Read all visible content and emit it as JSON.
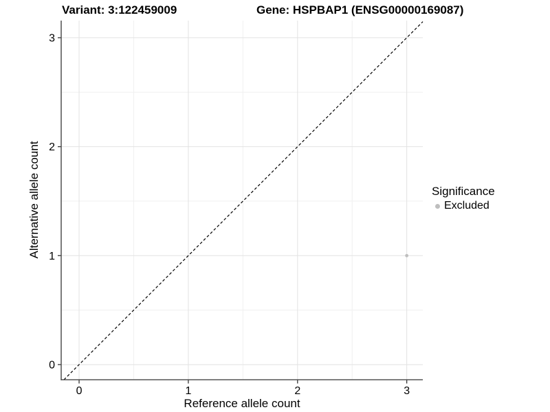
{
  "titles": {
    "variant": "Variant: 3:122459009",
    "gene": "Gene: HSPBAP1 (ENSG00000169087)"
  },
  "legend": {
    "title": "Significance",
    "items": [
      {
        "label": "Excluded",
        "color": "#bebebe"
      }
    ]
  },
  "chart_data": {
    "type": "scatter",
    "title_left": "Variant: 3:122459009",
    "title_right": "Gene: HSPBAP1 (ENSG00000169087)",
    "xlabel": "Reference allele count",
    "ylabel": "Alternative allele count",
    "xlim": [
      -0.164,
      3.147
    ],
    "ylim": [
      -0.139,
      3.157
    ],
    "xticks": [
      0,
      1,
      2,
      3
    ],
    "yticks": [
      0,
      1,
      2,
      3
    ],
    "x_minor": [
      0.5,
      1.5,
      2.5
    ],
    "y_minor": [
      0.5,
      1.5,
      2.5
    ],
    "grid": true,
    "legend_position": "right",
    "series": [
      {
        "name": "Excluded",
        "color": "#bebebe",
        "points": [
          {
            "x": 3,
            "y": 1
          }
        ]
      }
    ],
    "reference_line": {
      "type": "identity",
      "style": "dashed",
      "color": "#000000"
    }
  },
  "colors": {
    "background": "#ffffff",
    "grid_major": "#e2e2e2",
    "grid_minor": "#f0f0f0",
    "axis_line": "#333333",
    "text": "#000000",
    "excluded_point": "#bebebe",
    "dashed_line": "#000000"
  }
}
